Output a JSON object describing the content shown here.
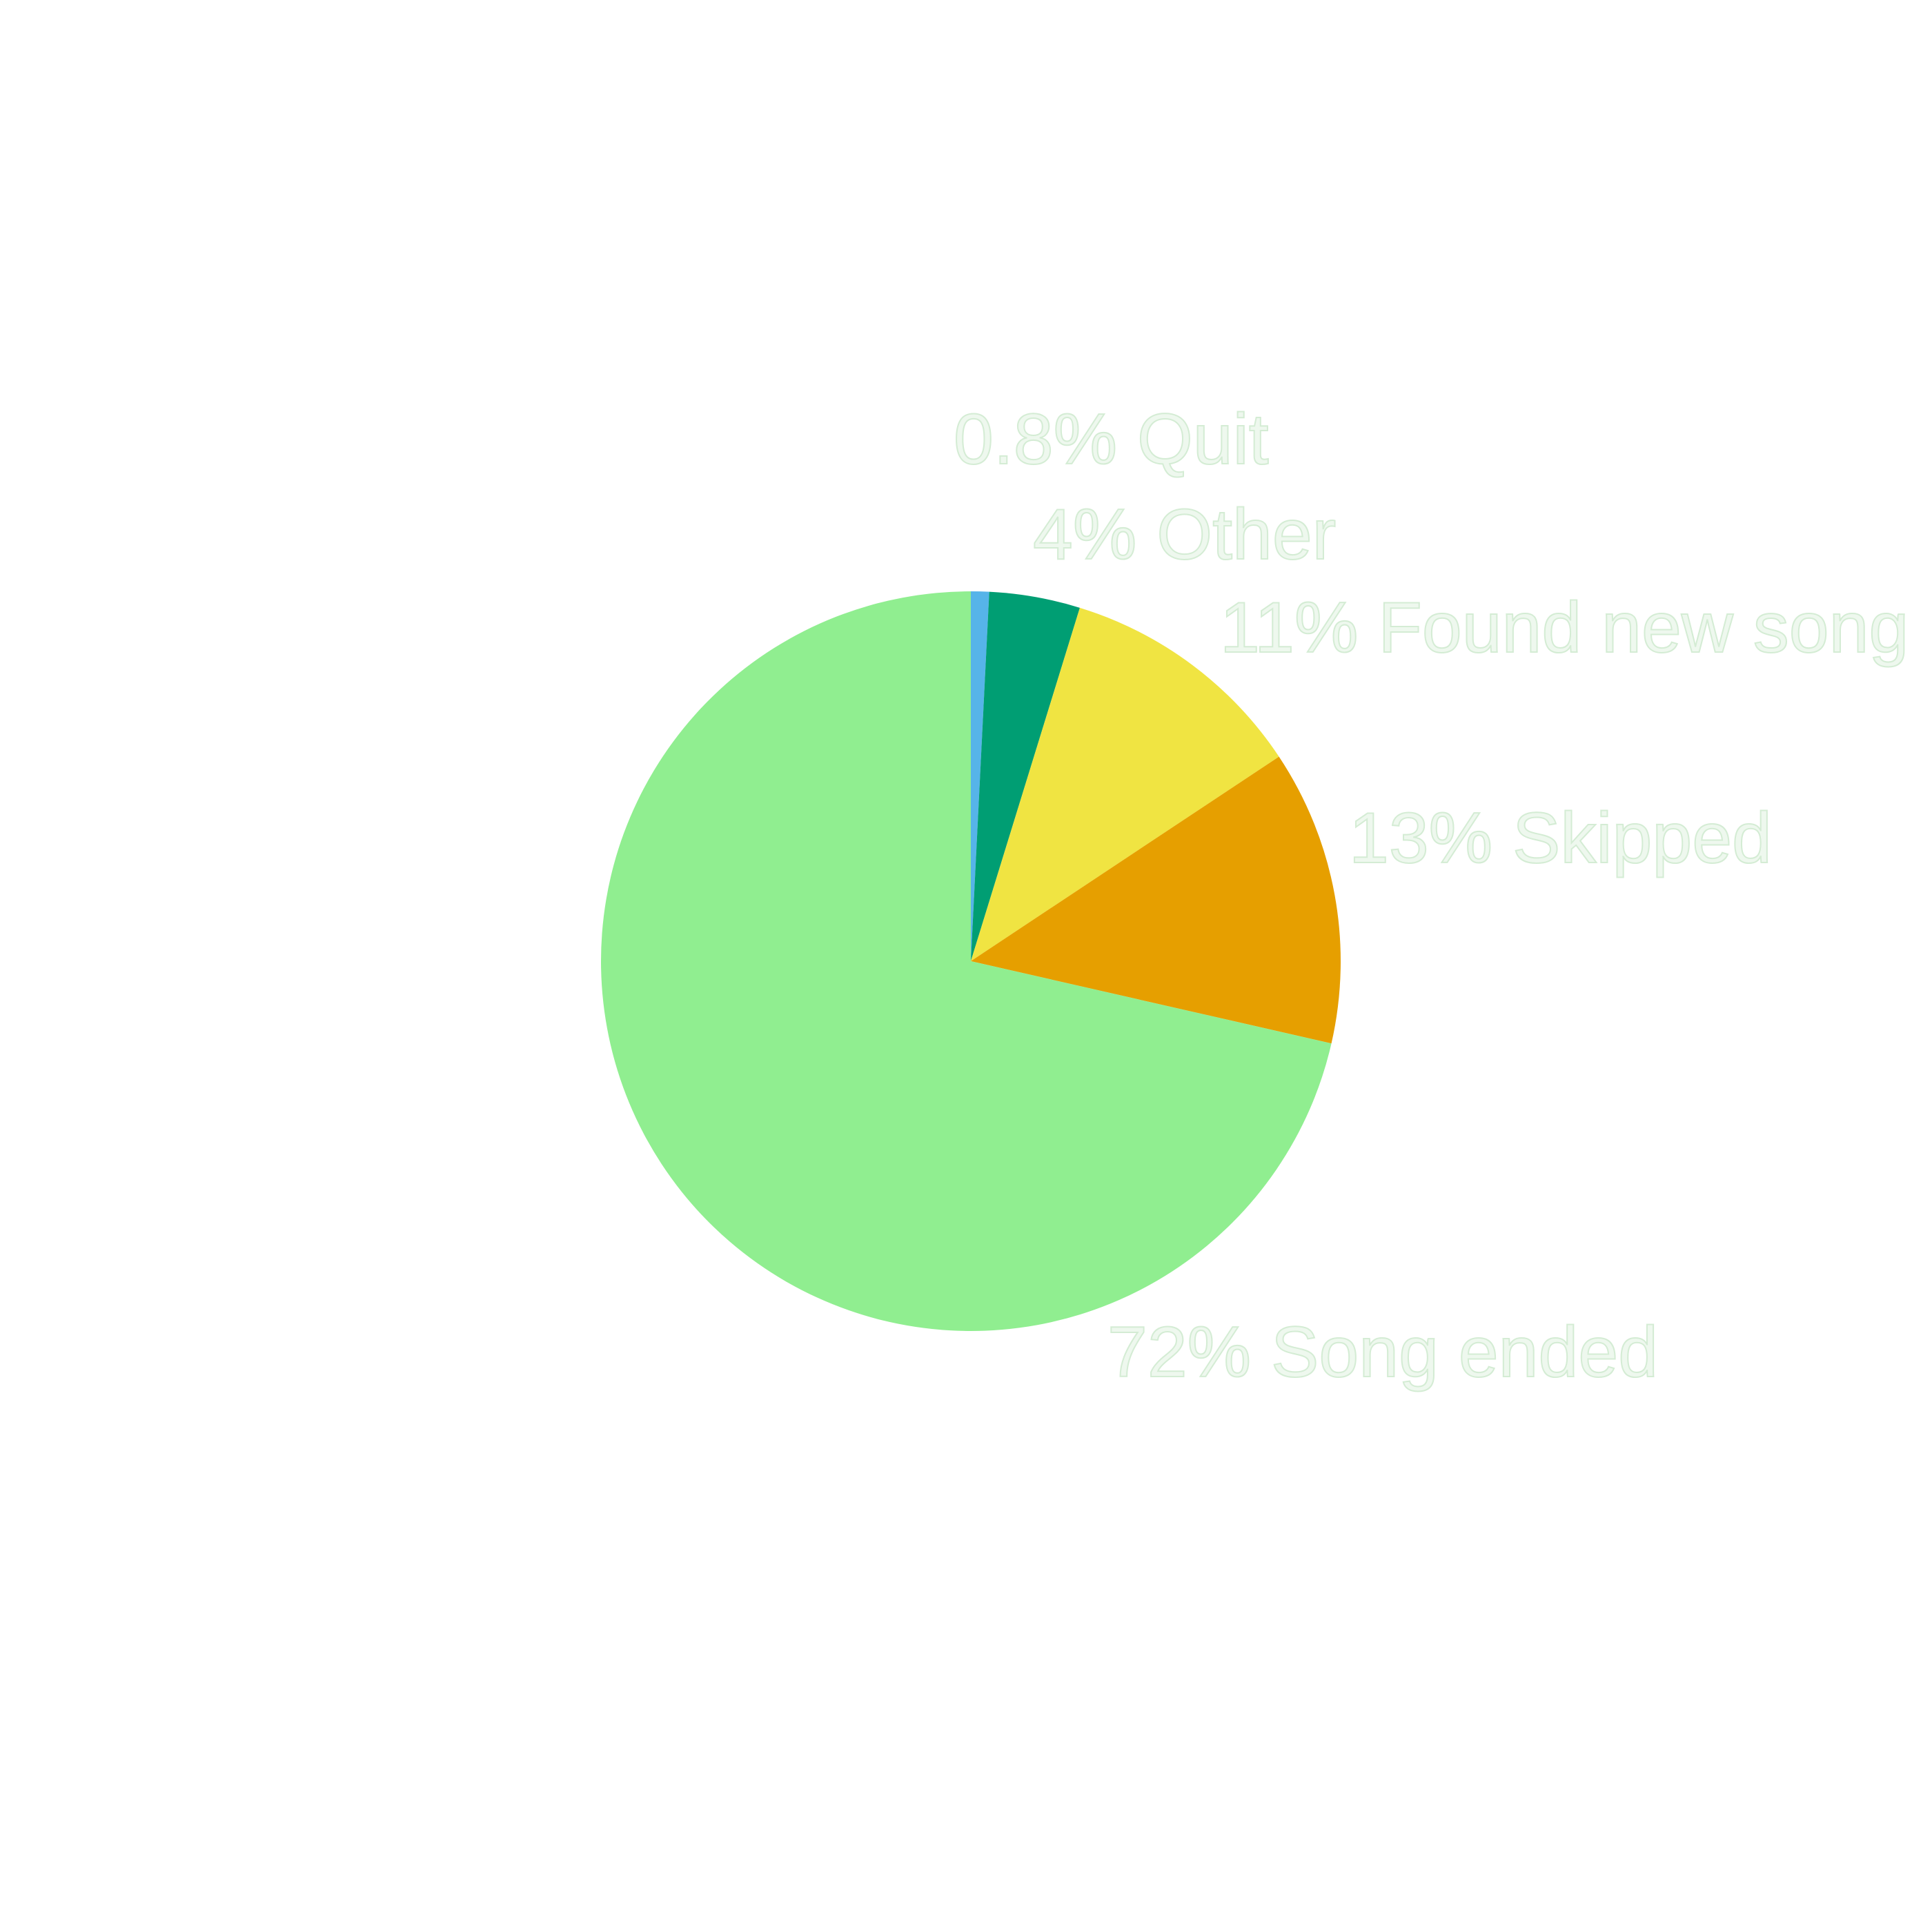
{
  "chart_data": {
    "type": "pie",
    "start_angle": "top",
    "direction": "clockwise",
    "slices": [
      {
        "label": "Quit",
        "value": 0.8,
        "display": "0.8% Quit",
        "color": "#56b4e9"
      },
      {
        "label": "Other",
        "value": 4,
        "display": "4% Other",
        "color": "#009e73"
      },
      {
        "label": "Found new song",
        "value": 11,
        "display": "11% Found new song",
        "color": "#f0e442"
      },
      {
        "label": "Skipped",
        "value": 13,
        "display": "13% Skipped",
        "color": "#e69f00"
      },
      {
        "label": "Song ended",
        "value": 72,
        "display": "72% Song ended",
        "color": "#90ee90"
      }
    ]
  }
}
